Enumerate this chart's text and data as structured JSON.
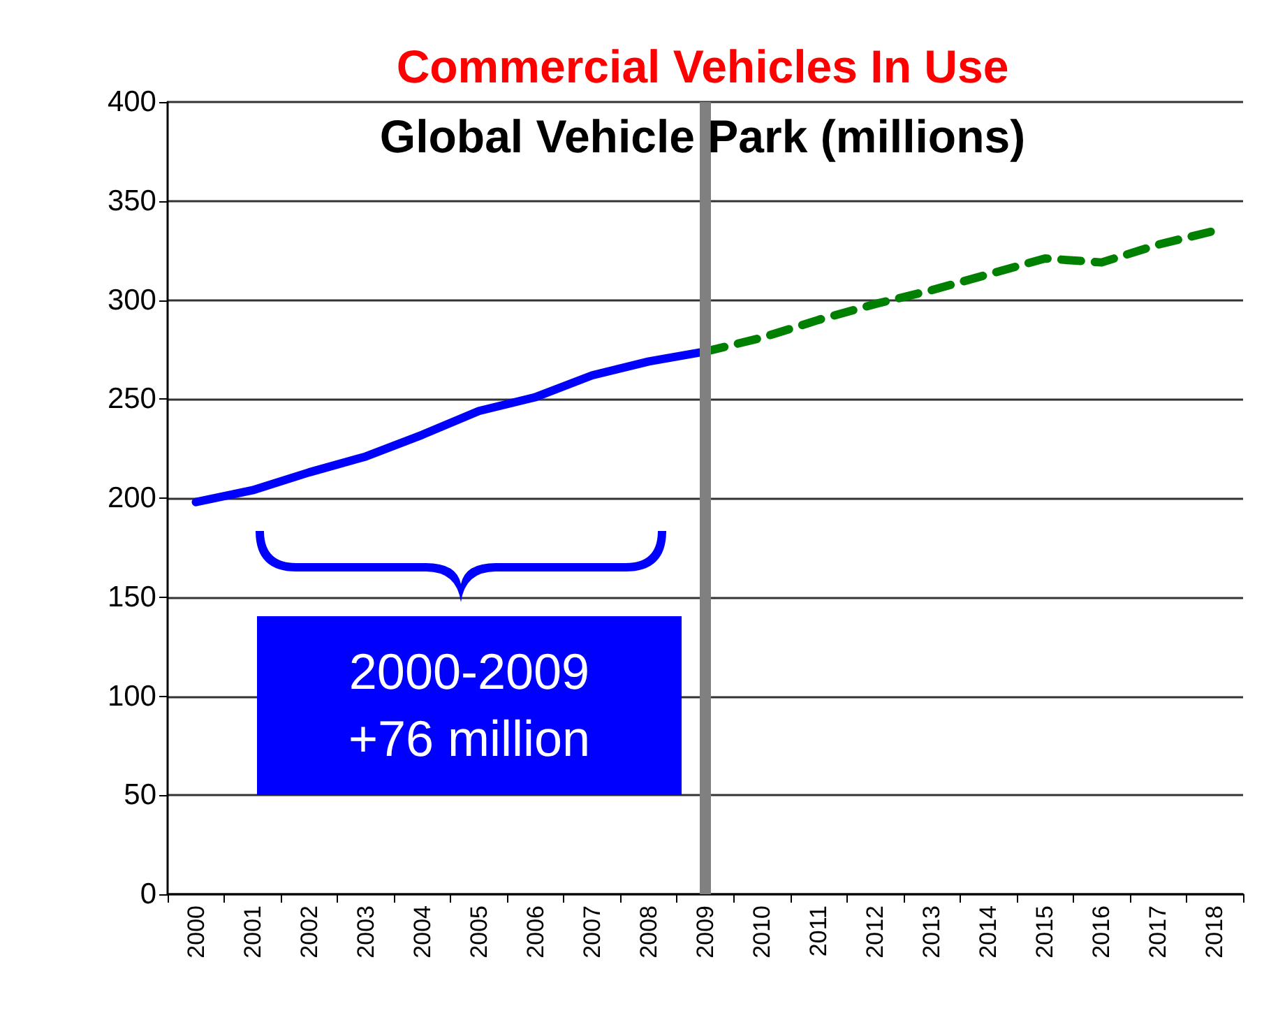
{
  "chart_data": {
    "type": "line",
    "title": "Commercial Vehicles In Use",
    "subtitle": "Global Vehicle Park (millions)",
    "categories": [
      "2000",
      "2001",
      "2002",
      "2003",
      "2004",
      "2005",
      "2006",
      "2007",
      "2008",
      "2009",
      "2010",
      "2011",
      "2012",
      "2013",
      "2014",
      "2015",
      "2016",
      "2017",
      "2018"
    ],
    "series": [
      {
        "color": "#0000ff",
        "line_style": "solid",
        "values": [
          198,
          204,
          213,
          221,
          232,
          244,
          251,
          262,
          269,
          274,
          null,
          null,
          null,
          null,
          null,
          null,
          null,
          null,
          null
        ]
      },
      {
        "color": "#008000",
        "line_style": "dashed",
        "values": [
          null,
          null,
          null,
          null,
          null,
          null,
          null,
          null,
          null,
          274,
          281,
          290,
          298,
          305,
          313,
          321,
          319,
          328,
          335
        ]
      }
    ],
    "ylim": [
      0,
      400
    ],
    "yticks": [
      0,
      50,
      100,
      150,
      200,
      250,
      300,
      350,
      400
    ],
    "grid": "y",
    "marker": "none",
    "ref_lines": [
      {
        "axis": "x",
        "value": "2009",
        "color": "#808080",
        "line_style": "solid"
      }
    ],
    "annotations": [
      "2000-2009\n+76 million"
    ]
  }
}
